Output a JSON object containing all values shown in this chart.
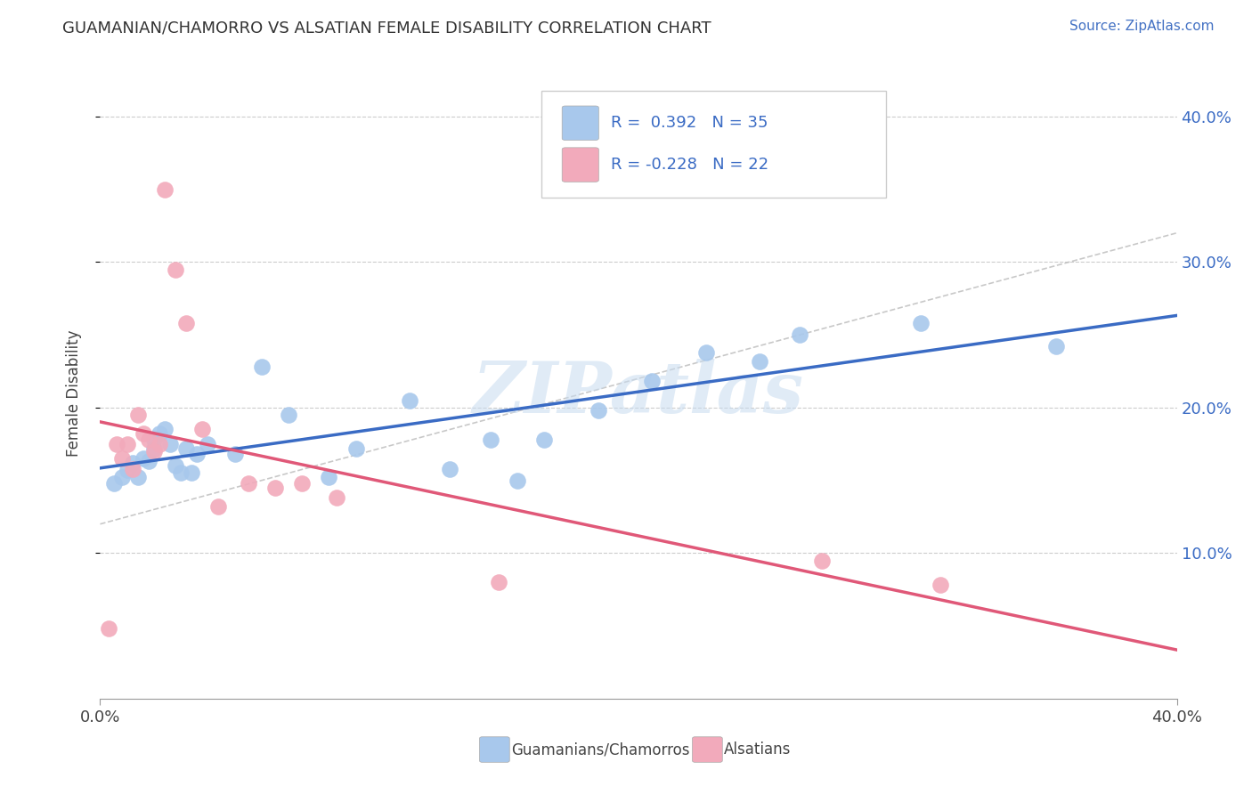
{
  "title": "GUAMANIAN/CHAMORRO VS ALSATIAN FEMALE DISABILITY CORRELATION CHART",
  "source": "Source: ZipAtlas.com",
  "ylabel": "Female Disability",
  "xlim": [
    0.0,
    0.4
  ],
  "ylim": [
    0.0,
    0.42
  ],
  "ytick_labels": [
    "10.0%",
    "20.0%",
    "30.0%",
    "40.0%"
  ],
  "ytick_values": [
    0.1,
    0.2,
    0.3,
    0.4
  ],
  "legend_text_1": "R =  0.392   N = 35",
  "legend_text_2": "R = -0.228   N = 22",
  "blue_color": "#A8C8EC",
  "pink_color": "#F2AABB",
  "blue_line_color": "#3A6BC4",
  "pink_line_color": "#E05878",
  "dash_line_color": "#BBBBBB",
  "r_n_color": "#3A6BC4",
  "background_color": "#FFFFFF",
  "watermark": "ZIPatlas",
  "label_guam": "Guamanians/Chamorros",
  "label_alsatian": "Alsatians",
  "blue_scatter_x": [
    0.005,
    0.008,
    0.01,
    0.012,
    0.014,
    0.016,
    0.018,
    0.02,
    0.02,
    0.022,
    0.024,
    0.026,
    0.028,
    0.03,
    0.032,
    0.034,
    0.036,
    0.04,
    0.05,
    0.06,
    0.07,
    0.085,
    0.095,
    0.115,
    0.13,
    0.145,
    0.155,
    0.165,
    0.185,
    0.205,
    0.225,
    0.245,
    0.26,
    0.305,
    0.355
  ],
  "blue_scatter_y": [
    0.148,
    0.152,
    0.157,
    0.162,
    0.152,
    0.165,
    0.163,
    0.172,
    0.178,
    0.182,
    0.185,
    0.175,
    0.16,
    0.155,
    0.172,
    0.155,
    0.168,
    0.175,
    0.168,
    0.228,
    0.195,
    0.152,
    0.172,
    0.205,
    0.158,
    0.178,
    0.15,
    0.178,
    0.198,
    0.218,
    0.238,
    0.232,
    0.25,
    0.258,
    0.242
  ],
  "pink_scatter_x": [
    0.003,
    0.006,
    0.008,
    0.01,
    0.012,
    0.014,
    0.016,
    0.018,
    0.02,
    0.022,
    0.024,
    0.028,
    0.032,
    0.038,
    0.044,
    0.055,
    0.065,
    0.075,
    0.088,
    0.148,
    0.268,
    0.312
  ],
  "pink_scatter_y": [
    0.048,
    0.175,
    0.165,
    0.175,
    0.158,
    0.195,
    0.182,
    0.178,
    0.17,
    0.175,
    0.35,
    0.295,
    0.258,
    0.185,
    0.132,
    0.148,
    0.145,
    0.148,
    0.138,
    0.08,
    0.095,
    0.078
  ]
}
